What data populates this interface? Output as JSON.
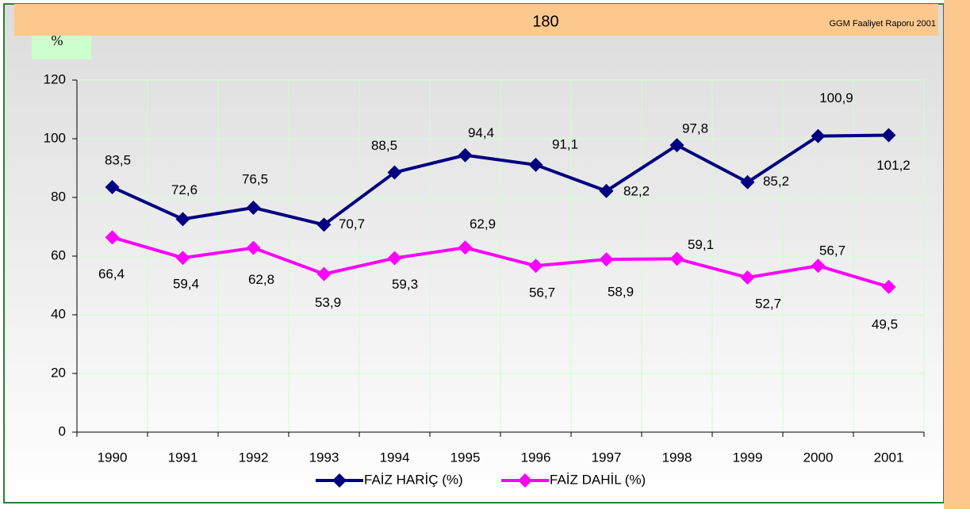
{
  "header": {
    "page_number": "180",
    "source": "GGM Faaliyet Raporu 2001"
  },
  "chart_data": {
    "type": "line",
    "ylabel": "%",
    "categories": [
      "1990",
      "1991",
      "1992",
      "1993",
      "1994",
      "1995",
      "1996",
      "1997",
      "1998",
      "1999",
      "2000",
      "2001"
    ],
    "series": [
      {
        "name": "FAİZ HARİÇ (%)",
        "color": "#000080",
        "values": [
          83.5,
          72.6,
          76.5,
          70.7,
          88.5,
          94.4,
          91.1,
          82.2,
          97.8,
          85.2,
          100.9,
          101.2
        ],
        "value_labels": [
          "83,5",
          "72,6",
          "76,5",
          "70,7",
          "88,5",
          "94,4",
          "91,1",
          "82,2",
          "97,8",
          "85,2",
          "100,9",
          "101,2"
        ]
      },
      {
        "name": "FAİZ DAHİL (%)",
        "color": "#ff00ff",
        "values": [
          66.4,
          59.4,
          62.8,
          53.9,
          59.3,
          62.9,
          56.7,
          58.9,
          59.1,
          52.7,
          56.7,
          49.5
        ],
        "value_labels": [
          "66,4",
          "59,4",
          "62,8",
          "53,9",
          "59,3",
          "62,9",
          "56,7",
          "58,9",
          "59,1",
          "52,7",
          "56,7",
          "49,5"
        ]
      }
    ],
    "ylim": [
      0,
      120
    ],
    "yticks": [
      0,
      20,
      40,
      60,
      80,
      100,
      120
    ],
    "grid": true,
    "legend": "bottom"
  }
}
